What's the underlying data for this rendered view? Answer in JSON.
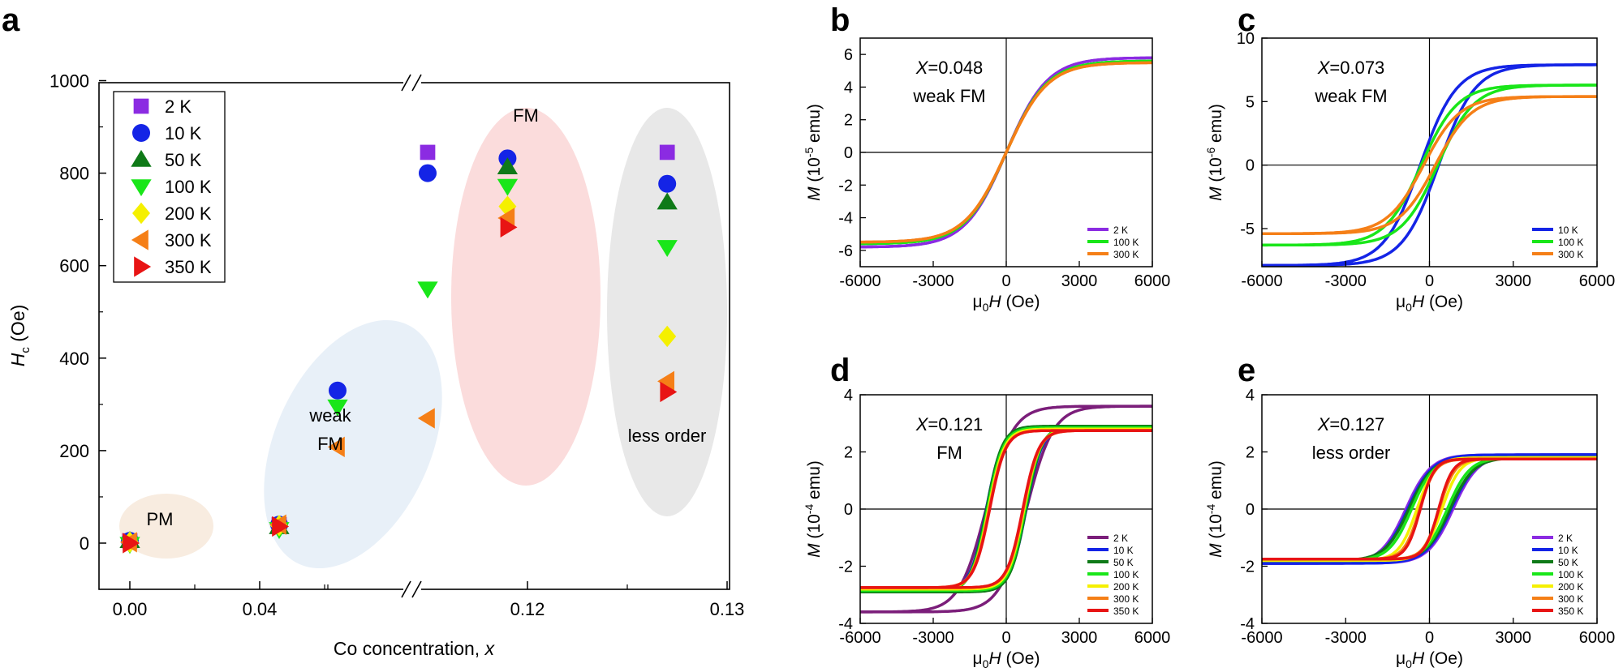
{
  "panel_letters": {
    "a": "a",
    "b": "b",
    "c": "c",
    "d": "d",
    "e": "e"
  },
  "colors": {
    "2 K": "#8B2BE2",
    "10 K": "#1424E6",
    "50 K": "#0F7A18",
    "100 K": "#19E619",
    "200 K": "#F5F000",
    "300 K": "#F57F17",
    "350 K": "#E81414",
    "purple_dark": "#7B1E7A",
    "pm_ellipse": "#F8ECE0",
    "weakfm_ellipse": "#E8F0F8",
    "fm_ellipse": "#FBDCDC",
    "lessorder_ellipse": "#E8E8E8"
  },
  "chart_data": [
    {
      "panel": "a",
      "type": "scatter",
      "xlabel": "Co concentration, ",
      "xlabel_var": "x",
      "ylabel_main": "H",
      "ylabel_sub": "c",
      "ylabel_unit": " (Oe)",
      "ylim": [
        -100,
        1000
      ],
      "yticks": [
        0,
        200,
        400,
        600,
        800,
        1000
      ],
      "ytick_labels": [
        "0",
        "200",
        "400",
        "600",
        "800",
        "1000"
      ],
      "xticks": [
        0.0,
        0.04,
        0.12,
        0.13
      ],
      "xtick_labels": [
        "0.00",
        "0.04",
        "0.12",
        "0.13"
      ],
      "axis_break": "//",
      "legend": [
        "2 K",
        "10 K",
        "50 K",
        "100 K",
        "200 K",
        "300 K",
        "350 K"
      ],
      "regions": [
        {
          "label": "PM",
          "label2": ""
        },
        {
          "label": "weak",
          "label2": "FM"
        },
        {
          "label": "FM",
          "label2": ""
        },
        {
          "label": "less order",
          "label2": ""
        }
      ],
      "series": [
        {
          "name": "2 K",
          "marker": "square",
          "points": [
            [
              0.0,
              5
            ],
            [
              0.046,
              40
            ],
            [
              0.115,
              845
            ],
            [
              0.127,
              845
            ]
          ]
        },
        {
          "name": "10 K",
          "marker": "circle",
          "points": [
            [
              0.0,
              5
            ],
            [
              0.046,
              40
            ],
            [
              0.064,
              330
            ],
            [
              0.115,
              800
            ],
            [
              0.119,
              832
            ],
            [
              0.127,
              777
            ]
          ]
        },
        {
          "name": "50 K",
          "marker": "triangle-up",
          "points": [
            [
              0.0,
              5
            ],
            [
              0.046,
              35
            ],
            [
              0.119,
              813
            ],
            [
              0.127,
              737
            ]
          ]
        },
        {
          "name": "100 K",
          "marker": "triangle-down",
          "points": [
            [
              0.0,
              -2
            ],
            [
              0.046,
              30
            ],
            [
              0.064,
              295
            ],
            [
              0.115,
              550
            ],
            [
              0.119,
              772
            ],
            [
              0.127,
              640
            ]
          ]
        },
        {
          "name": "200 K",
          "marker": "diamond",
          "points": [
            [
              0.0,
              2
            ],
            [
              0.046,
              38
            ],
            [
              0.119,
              728
            ],
            [
              0.127,
              447
            ]
          ]
        },
        {
          "name": "300 K",
          "marker": "triangle-left",
          "points": [
            [
              0.0,
              2
            ],
            [
              0.046,
              40
            ],
            [
              0.064,
              208
            ],
            [
              0.115,
              270
            ],
            [
              0.119,
              703
            ],
            [
              0.127,
              350
            ]
          ]
        },
        {
          "name": "350 K",
          "marker": "triangle-right",
          "points": [
            [
              0.0,
              0
            ],
            [
              0.046,
              36
            ],
            [
              0.119,
              683
            ],
            [
              0.127,
              327
            ]
          ]
        }
      ]
    },
    {
      "panel": "b",
      "type": "line",
      "annotation_var": "X",
      "annotation_value": "=0.048",
      "annotation_line2": "weak FM",
      "xlabel": "μ",
      "xlabel_sub": "0",
      "xlabel_var": "H",
      "xlabel_unit": " (Oe)",
      "ylabel_var": "M",
      "ylabel_unit_pre": " (10",
      "ylabel_exp": "-5",
      "ylabel_unit_post": " emu)",
      "xlim": [
        -6000,
        6000
      ],
      "ylim": [
        -7,
        7
      ],
      "xticks": [
        -6000,
        -3000,
        0,
        3000,
        6000
      ],
      "xtick_labels": [
        "-6000",
        "-3000",
        "0",
        "3000",
        "6000"
      ],
      "yticks": [
        -6,
        -4,
        -2,
        0,
        2,
        4,
        6
      ],
      "ytick_labels": [
        "-6",
        "-4",
        "-2",
        "0",
        "2",
        "4",
        "6"
      ],
      "legend": [
        "2 K",
        "100 K",
        "300 K"
      ],
      "series": [
        {
          "name": "2 K",
          "Ms": 5.8,
          "Hc": 0,
          "Hs": 1700
        },
        {
          "name": "100 K",
          "Ms": 5.6,
          "Hc": 0,
          "Hs": 1700
        },
        {
          "name": "300 K",
          "Ms": 5.5,
          "Hc": 0,
          "Hs": 1700
        }
      ]
    },
    {
      "panel": "c",
      "type": "line",
      "annotation_var": "X",
      "annotation_value": "=0.073",
      "annotation_line2": "weak FM",
      "xlabel": "μ",
      "xlabel_sub": "0",
      "xlabel_var": "H",
      "xlabel_unit": " (Oe)",
      "ylabel_var": "M",
      "ylabel_unit_pre": " (10",
      "ylabel_exp": "-6",
      "ylabel_unit_post": " emu)",
      "xlim": [
        -6000,
        6000
      ],
      "ylim": [
        -8,
        10
      ],
      "xticks": [
        -6000,
        -3000,
        0,
        3000,
        6000
      ],
      "xtick_labels": [
        "-6000",
        "-3000",
        "0",
        "3000",
        "6000"
      ],
      "yticks": [
        -5,
        0,
        5,
        10
      ],
      "ytick_labels": [
        "-5",
        "0",
        "5",
        "10"
      ],
      "legend": [
        "10 K",
        "100 K",
        "300 K"
      ],
      "series": [
        {
          "name": "10 K",
          "Ms": 7.9,
          "Hc": 330,
          "Hs": 1300
        },
        {
          "name": "100 K",
          "Ms": 6.3,
          "Hc": 295,
          "Hs": 1300
        },
        {
          "name": "300 K",
          "Ms": 5.4,
          "Hc": 210,
          "Hs": 1300
        }
      ]
    },
    {
      "panel": "d",
      "type": "line",
      "annotation_var": "X",
      "annotation_value": "=0.121",
      "annotation_line2": "FM",
      "xlabel": "μ",
      "xlabel_sub": "0",
      "xlabel_var": "H",
      "xlabel_unit": " (Oe)",
      "ylabel_var": "M",
      "ylabel_unit_pre": " (10",
      "ylabel_exp": "-4",
      "ylabel_unit_post": " emu)",
      "xlim": [
        -6000,
        6000
      ],
      "ylim": [
        -4,
        4
      ],
      "xticks": [
        -6000,
        -3000,
        0,
        3000,
        6000
      ],
      "xtick_labels": [
        "-6000",
        "-3000",
        "0",
        "3000",
        "6000"
      ],
      "yticks": [
        -4,
        -2,
        0,
        2,
        4
      ],
      "ytick_labels": [
        "-4",
        "-2",
        "0",
        "2",
        "4"
      ],
      "legend": [
        "2 K",
        "10 K",
        "50 K",
        "100 K",
        "200 K",
        "300 K",
        "350 K"
      ],
      "series": [
        {
          "name": "2 K",
          "Ms": 3.6,
          "Hc": 830,
          "Hs": 1100,
          "slope": 0.00012
        },
        {
          "name": "10 K",
          "Ms": 2.85,
          "Hc": 820,
          "Hs": 650
        },
        {
          "name": "50 K",
          "Ms": 2.9,
          "Hc": 810,
          "Hs": 650
        },
        {
          "name": "100 K",
          "Ms": 2.85,
          "Hc": 770,
          "Hs": 650
        },
        {
          "name": "200 K",
          "Ms": 2.8,
          "Hc": 730,
          "Hs": 650
        },
        {
          "name": "300 K",
          "Ms": 2.75,
          "Hc": 700,
          "Hs": 650
        },
        {
          "name": "350 K",
          "Ms": 2.75,
          "Hc": 680,
          "Hs": 650
        }
      ]
    },
    {
      "panel": "e",
      "type": "line",
      "annotation_var": "X",
      "annotation_value": "=0.127",
      "annotation_line2": "less order",
      "xlabel": "μ",
      "xlabel_sub": "0",
      "xlabel_var": "H",
      "xlabel_unit": " (Oe)",
      "ylabel_var": "M",
      "ylabel_unit_pre": " (10",
      "ylabel_exp": "-4",
      "ylabel_unit_post": " emu)",
      "xlim": [
        -6000,
        6000
      ],
      "ylim": [
        -4,
        4
      ],
      "xticks": [
        -6000,
        -3000,
        0,
        3000,
        6000
      ],
      "xtick_labels": [
        "-6000",
        "-3000",
        "0",
        "3000",
        "6000"
      ],
      "yticks": [
        -4,
        -2,
        0,
        2,
        4
      ],
      "ytick_labels": [
        "-4",
        "-2",
        "0",
        "2",
        "4"
      ],
      "legend": [
        "2 K",
        "10 K",
        "50 K",
        "100 K",
        "200 K",
        "300 K",
        "350 K"
      ],
      "series": [
        {
          "name": "2 K",
          "Ms": 1.9,
          "Hc": 845,
          "Hs": 900
        },
        {
          "name": "10 K",
          "Ms": 1.9,
          "Hc": 777,
          "Hs": 900
        },
        {
          "name": "50 K",
          "Ms": 1.8,
          "Hc": 737,
          "Hs": 850
        },
        {
          "name": "100 K",
          "Ms": 1.8,
          "Hc": 640,
          "Hs": 800
        },
        {
          "name": "200 K",
          "Ms": 1.8,
          "Hc": 447,
          "Hs": 650
        },
        {
          "name": "300 K",
          "Ms": 1.75,
          "Hc": 350,
          "Hs": 550
        },
        {
          "name": "350 K",
          "Ms": 1.75,
          "Hc": 327,
          "Hs": 500
        }
      ]
    }
  ]
}
